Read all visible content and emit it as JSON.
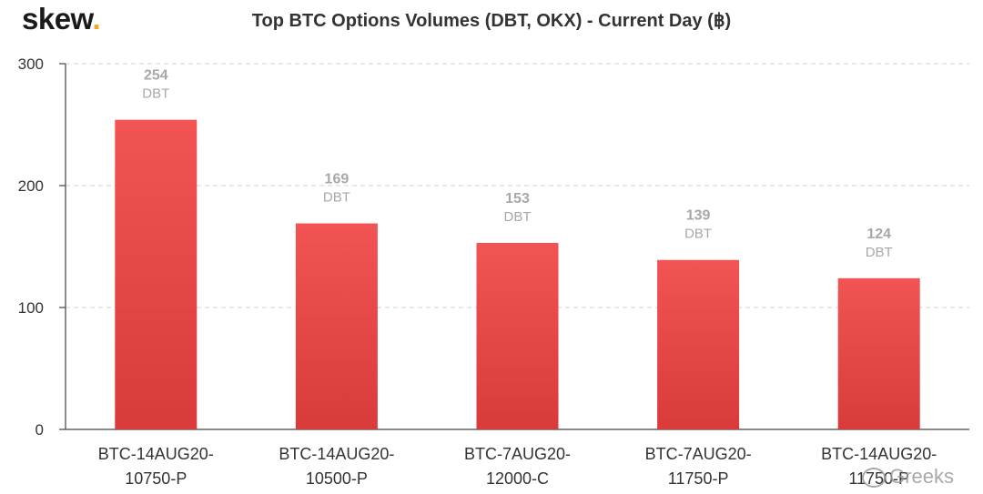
{
  "logo": {
    "text": "skew",
    "dot": "."
  },
  "watermark": {
    "text": "Greeks",
    "icon": "wechat-icon"
  },
  "colors": {
    "bar": "#e84a4a",
    "bar_top": "#f25454",
    "bar_bottom": "#d93b3b",
    "label": "#a8a8a8",
    "axis": "#444444",
    "grid": "#d9d9d9",
    "tick": "#333333"
  },
  "chart_data": {
    "type": "bar",
    "title": "Top BTC Options Volumes (DBT, OKX) - Current Day (฿)",
    "xlabel": "",
    "ylabel": "",
    "categories": [
      [
        "BTC-14AUG20-",
        "10750-P"
      ],
      [
        "BTC-14AUG20-",
        "10500-P"
      ],
      [
        "BTC-7AUG20-",
        "12000-C"
      ],
      [
        "BTC-7AUG20-",
        "11750-P"
      ],
      [
        "BTC-14AUG20-",
        "11750-P"
      ]
    ],
    "values": [
      254,
      169,
      153,
      139,
      124
    ],
    "data_label_suffix": "DBT",
    "ylim": [
      0,
      300
    ],
    "yticks": [
      0,
      100,
      200,
      300
    ],
    "grid": true,
    "legend": "none"
  }
}
